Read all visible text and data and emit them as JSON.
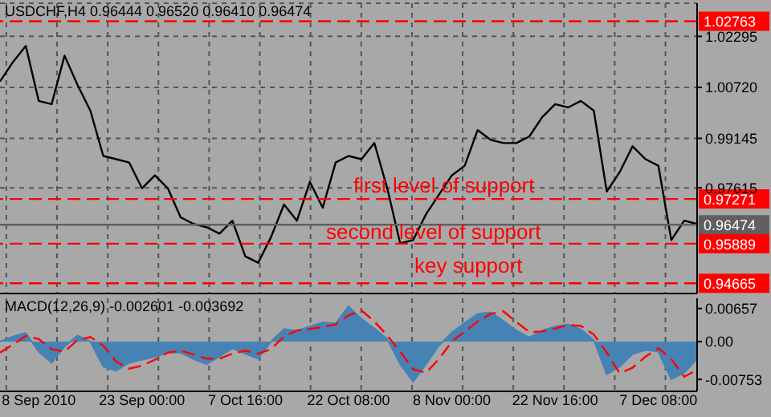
{
  "chart_data": [
    {
      "type": "line",
      "title": "USDCHF,H4  0.96444 0.96520 0.96410 0.96474",
      "categories": [
        null,
        null,
        null,
        null,
        null,
        null,
        null,
        null,
        null,
        null,
        null,
        null,
        null,
        null,
        null,
        null,
        null,
        null,
        null,
        null,
        null,
        null,
        null,
        null,
        null,
        null,
        null,
        null,
        null,
        null,
        null,
        null,
        null,
        null,
        null,
        null,
        null,
        null,
        null,
        null,
        null,
        null,
        null,
        null,
        null,
        null,
        null,
        null,
        null,
        null,
        null,
        null,
        null,
        null,
        null
      ],
      "series": [
        {
          "color": "#000000",
          "values": [
            1.009,
            1.015,
            1.02,
            1.003,
            1.002,
            1.017,
            1.008,
            1.0,
            0.986,
            0.985,
            0.984,
            0.976,
            0.98,
            0.976,
            0.967,
            0.965,
            0.964,
            0.962,
            0.966,
            0.955,
            0.953,
            0.961,
            0.971,
            0.966,
            0.978,
            0.97,
            0.984,
            0.986,
            0.985,
            0.99,
            0.976,
            0.959,
            0.96,
            0.968,
            0.974,
            0.98,
            0.983,
            0.994,
            0.991,
            0.99,
            0.99,
            0.992,
            0.998,
            1.002,
            1.001,
            1.003,
            1.0,
            0.975,
            0.981,
            0.989,
            0.985,
            0.983,
            0.96,
            0.966,
            0.965
          ]
        }
      ],
      "ylim": [
        0.9435,
        1.0332
      ],
      "yticks": [
        1.02295,
        {
          "value": 1.0072,
          "label": "1.00720"
        },
        0.99145,
        0.97615
      ],
      "grid": true,
      "tick_labels": "y",
      "ref_lines": [
        {
          "axis": "y",
          "value": 1.02763,
          "label": "1.02763",
          "color": "#ff0000",
          "line_style": "dashed"
        },
        {
          "axis": "y",
          "value": 0.97271,
          "label": "0.97271",
          "color": "#ff0000",
          "line_style": "dashed"
        },
        {
          "axis": "y",
          "value": 0.96474,
          "label": "0.96474",
          "color": "#606060",
          "line_style": "solid"
        },
        {
          "axis": "y",
          "value": 0.95889,
          "label": "0.95889",
          "color": "#ff0000",
          "line_style": "dashed"
        },
        {
          "axis": "y",
          "value": 0.94665,
          "label": "0.94665",
          "color": "#ff0000",
          "line_style": "dashed"
        }
      ],
      "annotations": [
        "first level of support",
        "second level of support",
        "key support"
      ]
    },
    {
      "type": "area",
      "title": "MACD(12,26,9) -0.002601 -0.003692",
      "categories": [
        null,
        null,
        null,
        "8 Sep 2010",
        null,
        null,
        null,
        null,
        null,
        null,
        null,
        "23 Sep 00:00",
        null,
        null,
        null,
        null,
        null,
        null,
        null,
        "7 Oct 16:00",
        null,
        null,
        null,
        null,
        null,
        null,
        null,
        "22 Oct 08:00",
        null,
        null,
        null,
        null,
        null,
        null,
        null,
        "8 Nov 00:00",
        null,
        null,
        null,
        null,
        null,
        null,
        null,
        "22 Nov 16:00",
        null,
        null,
        null,
        null,
        null,
        null,
        null,
        "7 Dec 08:00",
        null,
        null,
        null
      ],
      "series": [
        {
          "color": "#4682b4",
          "values": [
            0,
            0.001,
            0.0017,
            -0.002,
            -0.0042,
            -0.001,
            0.0012,
            0,
            -0.005,
            -0.0058,
            -0.0042,
            -0.0036,
            -0.003,
            -0.0022,
            -0.0022,
            -0.0035,
            -0.0045,
            -0.003,
            -0.0013,
            -0.0024,
            -0.0034,
            0,
            0.0025,
            0.0022,
            0.003,
            0.0038,
            0.0036,
            0.007,
            0.0045,
            0.0026,
            0.0005,
            -0.0045,
            -0.008,
            -0.0045,
            -0.0008,
            0.0018,
            0.0037,
            0.0055,
            0.0058,
            0.0041,
            0.0022,
            0.0008,
            0.0022,
            0.003,
            0.0034,
            0.0024,
            0.0003,
            -0.0065,
            -0.005,
            -0.0025,
            -0.0017,
            -0.002,
            -0.0075,
            -0.0062,
            -0.0034
          ]
        },
        {
          "type": "line",
          "color": "#ff0000",
          "line_style": "dashed",
          "values": [
            -0.0022,
            -0.0006,
            0.0011,
            0.0005,
            -0.0015,
            -0.002,
            0.0003,
            0.0009,
            -0.0008,
            -0.004,
            -0.0054,
            -0.0048,
            -0.0036,
            -0.0022,
            -0.0018,
            -0.0026,
            -0.0034,
            -0.0034,
            -0.0024,
            -0.0018,
            -0.0024,
            -0.0015,
            0.001,
            0.0022,
            0.0025,
            0.0029,
            0.0034,
            0.0052,
            0.0062,
            0.004,
            0.0012,
            -0.002,
            -0.0055,
            -0.0062,
            -0.0035,
            0,
            0.002,
            0.004,
            0.0055,
            0.006,
            0.0039,
            0.0019,
            0.002,
            0.0026,
            0.0033,
            0.0031,
            0.0014,
            -0.0022,
            -0.0063,
            -0.0052,
            -0.003,
            -0.0013,
            -0.0035,
            -0.007,
            -0.0056
          ]
        }
      ],
      "ylim": [
        -0.0099,
        0.0086
      ],
      "yticks": [
        0.00657,
        {
          "value": 0,
          "label": "0.00"
        },
        -0.00753
      ],
      "grid": "x"
    }
  ]
}
